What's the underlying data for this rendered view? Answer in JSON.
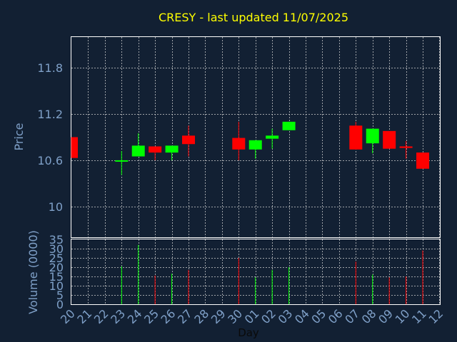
{
  "chart_data": [
    {
      "type": "candlestick",
      "title": "CRESY - last updated 11/07/2025",
      "ylabel": "Price",
      "xlabel": "",
      "ylim": [
        9.6,
        12.2
      ],
      "yticks": [
        10,
        10.6,
        11.2,
        11.8
      ],
      "ytick_labels": [
        "10",
        "10.6",
        "11.2",
        "11.8"
      ],
      "x": [
        "20",
        "21",
        "22",
        "23",
        "24",
        "25",
        "26",
        "27",
        "28",
        "29",
        "30",
        "01",
        "02",
        "03",
        "04",
        "05",
        "06",
        "07",
        "08",
        "09",
        "10",
        "11",
        "12"
      ],
      "candles": [
        {
          "x": "20",
          "open": 10.9,
          "close": 10.63,
          "high": 10.9,
          "low": 10.63
        },
        {
          "x": "23",
          "open": 10.59,
          "close": 10.6,
          "high": 10.72,
          "low": 10.41
        },
        {
          "x": "24",
          "open": 10.65,
          "close": 10.79,
          "high": 10.95,
          "low": 10.65
        },
        {
          "x": "25",
          "open": 10.78,
          "close": 10.7,
          "high": 10.78,
          "low": 10.6
        },
        {
          "x": "26",
          "open": 10.7,
          "close": 10.79,
          "high": 10.79,
          "low": 10.6
        },
        {
          "x": "27",
          "open": 10.92,
          "close": 10.81,
          "high": 11.05,
          "low": 10.65
        },
        {
          "x": "30",
          "open": 10.89,
          "close": 10.74,
          "high": 11.1,
          "low": 10.6
        },
        {
          "x": "01",
          "open": 10.74,
          "close": 10.86,
          "high": 10.86,
          "low": 10.62
        },
        {
          "x": "02",
          "open": 10.88,
          "close": 10.92,
          "high": 11.01,
          "low": 10.75
        },
        {
          "x": "03",
          "open": 10.99,
          "close": 11.1,
          "high": 11.1,
          "low": 10.99
        },
        {
          "x": "07",
          "open": 11.05,
          "close": 10.74,
          "high": 11.1,
          "low": 10.74
        },
        {
          "x": "08",
          "open": 10.82,
          "close": 11.01,
          "high": 11.01,
          "low": 10.69
        },
        {
          "x": "09",
          "open": 10.98,
          "close": 10.75,
          "high": 10.98,
          "low": 10.75
        },
        {
          "x": "10",
          "open": 10.78,
          "close": 10.76,
          "high": 10.85,
          "low": 10.62
        },
        {
          "x": "11",
          "open": 10.7,
          "close": 10.49,
          "high": 10.7,
          "low": 10.49
        }
      ],
      "grid": true,
      "colors": {
        "up": "#00ff00",
        "down": "#ff0000",
        "grid": "#cfcfcf",
        "title": "#ffff00",
        "axis_text": "#7fa0c8",
        "background": "#122033"
      }
    },
    {
      "type": "bar",
      "ylabel": "Volume (0000)",
      "xlabel": "Day",
      "ylim": [
        0,
        35
      ],
      "yticks": [
        0,
        5,
        10,
        15,
        20,
        25,
        30,
        35
      ],
      "ytick_labels": [
        "0",
        "5",
        "10",
        "15",
        "20",
        "25",
        "30",
        "35"
      ],
      "x": [
        "20",
        "21",
        "22",
        "23",
        "24",
        "25",
        "26",
        "27",
        "28",
        "29",
        "30",
        "01",
        "02",
        "03",
        "04",
        "05",
        "06",
        "07",
        "08",
        "09",
        "10",
        "11",
        "12"
      ],
      "bars": [
        {
          "x": "23",
          "value": 20.5,
          "dir": "up"
        },
        {
          "x": "24",
          "value": 32,
          "dir": "up"
        },
        {
          "x": "25",
          "value": 15.5,
          "dir": "down"
        },
        {
          "x": "26",
          "value": 16.5,
          "dir": "up"
        },
        {
          "x": "27",
          "value": 18.5,
          "dir": "down"
        },
        {
          "x": "30",
          "value": 25,
          "dir": "down"
        },
        {
          "x": "01",
          "value": 14.5,
          "dir": "up"
        },
        {
          "x": "02",
          "value": 18.5,
          "dir": "up"
        },
        {
          "x": "03",
          "value": 20,
          "dir": "up"
        },
        {
          "x": "07",
          "value": 23,
          "dir": "down"
        },
        {
          "x": "08",
          "value": 16,
          "dir": "up"
        },
        {
          "x": "09",
          "value": 14.5,
          "dir": "down"
        },
        {
          "x": "10",
          "value": 15,
          "dir": "down"
        },
        {
          "x": "11",
          "value": 29,
          "dir": "down"
        }
      ],
      "grid": true
    }
  ]
}
